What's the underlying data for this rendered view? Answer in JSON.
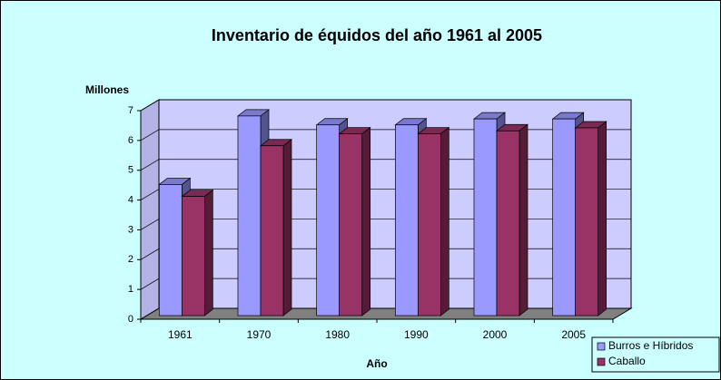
{
  "chart_data": {
    "type": "bar3d",
    "title": "Inventario de équidos del año 1961 al 2005",
    "y_label": "Millones",
    "x_label": "Año",
    "categories": [
      "1961",
      "1970",
      "1980",
      "1990",
      "2000",
      "2005"
    ],
    "series": [
      {
        "name": "Burros e Híbridos",
        "color": "#9999ff",
        "values": [
          4.4,
          6.7,
          6.4,
          6.4,
          6.6,
          6.6
        ]
      },
      {
        "name": "Caballo",
        "color": "#993366",
        "values": [
          4.0,
          5.7,
          6.1,
          6.1,
          6.2,
          6.3
        ]
      }
    ],
    "ylim": [
      0,
      7
    ],
    "yticks": [
      0,
      1,
      2,
      3,
      4,
      5,
      6,
      7
    ],
    "grid": true,
    "legend": "bottom-right"
  }
}
